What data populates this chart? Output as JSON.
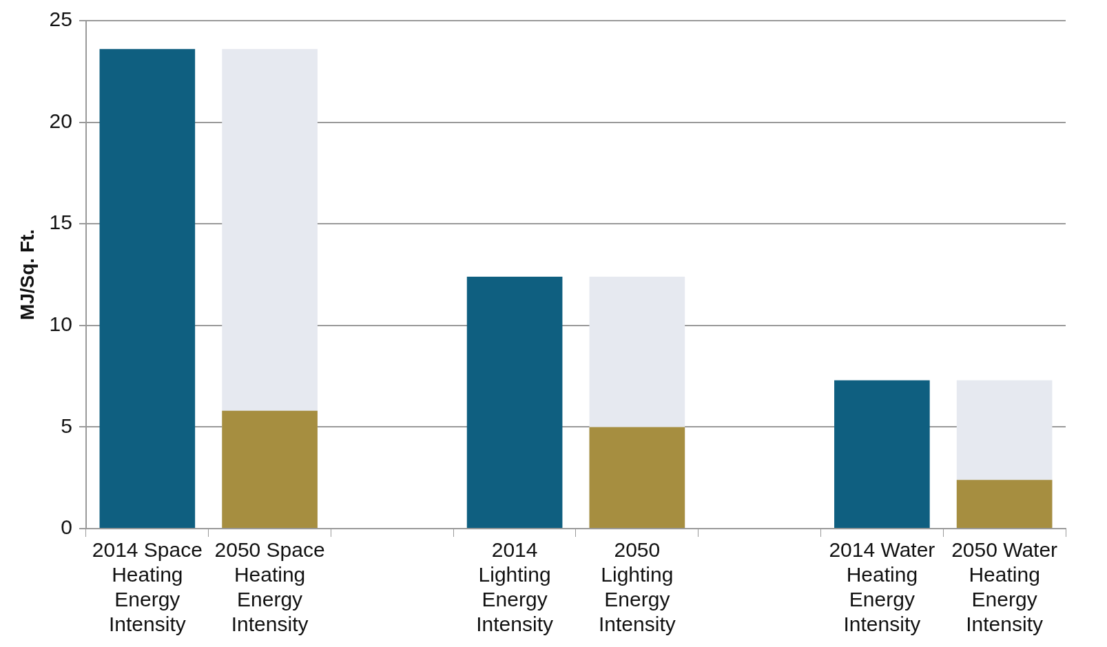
{
  "chart_data": {
    "type": "bar",
    "ylabel": "MJ/Sq. Ft.",
    "categories": [
      "2014 Space Heating Energy Intensity",
      "2050 Space Heating Energy Intensity",
      null,
      "2014 Lighting Energy Intensity",
      "2050 Lighting Energy Intensity",
      null,
      "2014 Water Heating Energy Intensity",
      "2050 Water Heating Energy Intensity"
    ],
    "series": [
      {
        "color": "#0f5f80",
        "values": [
          23.6,
          null,
          null,
          12.4,
          null,
          null,
          7.3,
          null
        ]
      },
      {
        "color": "#a68e40",
        "values": [
          null,
          5.8,
          null,
          null,
          5.0,
          null,
          null,
          2.4
        ]
      },
      {
        "color": "#e6e9f0",
        "values": [
          null,
          23.6,
          null,
          null,
          12.4,
          null,
          null,
          7.3
        ]
      }
    ],
    "ylim": [
      0,
      25
    ],
    "yticks": [
      0,
      5,
      10,
      15,
      20,
      25
    ],
    "grid": "y",
    "legend": false
  }
}
